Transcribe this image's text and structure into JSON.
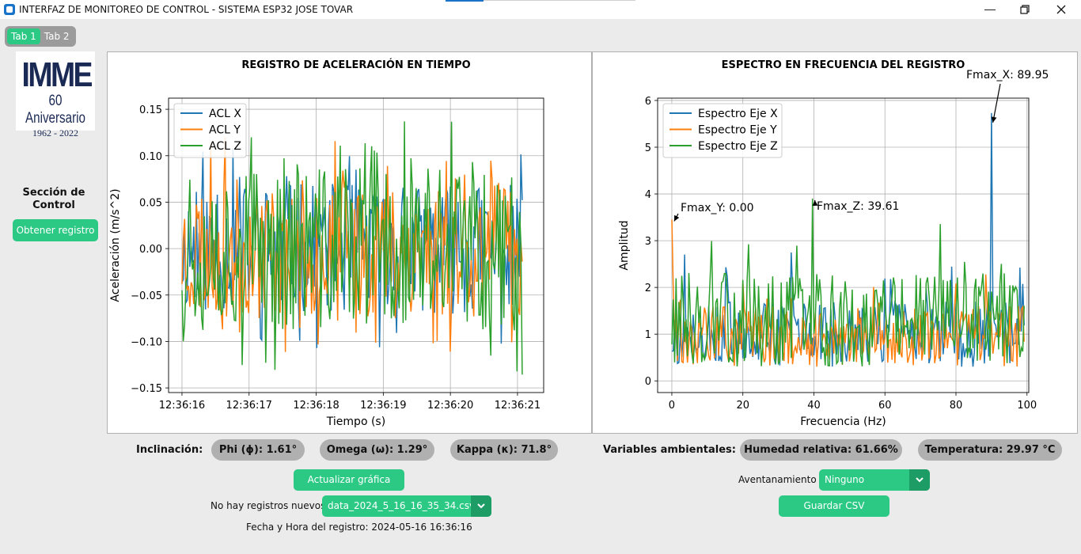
{
  "window": {
    "title": "INTERFAZ DE MONITOREO DE CONTROL - SISTEMA ESP32 JOSE TOVAR"
  },
  "tabs": [
    {
      "label": "Tab 1",
      "active": true
    },
    {
      "label": "Tab 2",
      "active": false
    }
  ],
  "logo": {
    "line1": "IMME",
    "line2": "60 Aniversario",
    "line3": "1962 - 2022"
  },
  "sidebar": {
    "section_title": "Sección de Control",
    "get_button": "Obtener registro"
  },
  "time_chart": {
    "title": "REGISTRO DE ACELERACIÓN EN TIEMPO",
    "xlabel": "Tiempo (s)",
    "ylabel": "Aceleración (m/s^2)",
    "xticks": [
      "12:36:16",
      "12:36:17",
      "12:36:18",
      "12:36:19",
      "12:36:20",
      "12:36:21"
    ],
    "yticks": [
      "0.15",
      "0.10",
      "0.05",
      "0.00",
      "−0.05",
      "−0.10",
      "−0.15"
    ],
    "legend": [
      "ACL X",
      "ACL Y",
      "ACL Z"
    ]
  },
  "freq_chart": {
    "title": "ESPECTRO EN FRECUENCIA DEL REGISTRO",
    "xlabel": "Frecuencia (Hz)",
    "ylabel": "Amplitud",
    "xticks": [
      "0",
      "20",
      "40",
      "60",
      "80",
      "100"
    ],
    "yticks": [
      "6",
      "5",
      "4",
      "3",
      "2",
      "1",
      "0"
    ],
    "legend": [
      "Espectro Eje X",
      "Espectro Eje Y",
      "Espectro Eje Z"
    ],
    "annotations": {
      "x": "Fmax_X: 89.95",
      "y": "Fmax_Y: 0.00",
      "z": "Fmax_Z: 39.61"
    }
  },
  "chart_data": [
    {
      "type": "line",
      "title": "REGISTRO DE ACELERACIÓN EN TIEMPO",
      "xlabel": "Tiempo (s)",
      "ylabel": "Aceleración (m/s^2)",
      "xlim": [
        "12:36:16",
        "12:36:21.1"
      ],
      "ylim": [
        -0.155,
        0.162
      ],
      "series": [
        {
          "name": "ACL X",
          "color": "#1f77b4"
        },
        {
          "name": "ACL Y",
          "color": "#ff7f0e"
        },
        {
          "name": "ACL Z",
          "color": "#2ca02c"
        }
      ],
      "legend_position": "top-left",
      "grid": true
    },
    {
      "type": "line",
      "title": "ESPECTRO EN FRECUENCIA DEL REGISTRO",
      "xlabel": "Frecuencia (Hz)",
      "ylabel": "Amplitud",
      "xlim": [
        -4,
        100.5
      ],
      "ylim": [
        -0.25,
        6.05
      ],
      "series": [
        {
          "name": "Espectro Eje X",
          "color": "#1f77b4",
          "peak": [
            89.95,
            5.73
          ]
        },
        {
          "name": "Espectro Eje Y",
          "color": "#ff7f0e",
          "peak": [
            0.0,
            3.45
          ]
        },
        {
          "name": "Espectro Eje Z",
          "color": "#2ca02c",
          "peak": [
            39.61,
            3.9
          ]
        }
      ],
      "legend_position": "top-left",
      "grid": true
    }
  ],
  "inclination": {
    "label": "Inclinación:",
    "phi": "Phi (ϕ): 1.61°",
    "omega": "Omega (ω): 1.29°",
    "kappa": "Kappa (κ): 71.8°"
  },
  "environment": {
    "label": "Variables ambientales:",
    "humidity": "Humedad relativa: 61.66%",
    "temperature": "Temperatura: 29.97 °C"
  },
  "controls": {
    "update_button": "Actualizar gráfica",
    "no_records": "No hay registros nuevos",
    "file_selected": "data_2024_5_16_16_35_34.csv",
    "timestamp": "Fecha y Hora del registro: 2024-05-16 16:36:16",
    "window_label": "Aventanamiento",
    "window_selected": "Ninguno",
    "save_button": "Guardar CSV"
  },
  "colors": {
    "accent": "#2cc985",
    "accent_dark": "#1d9c66",
    "pill": "#b0b0b0"
  }
}
